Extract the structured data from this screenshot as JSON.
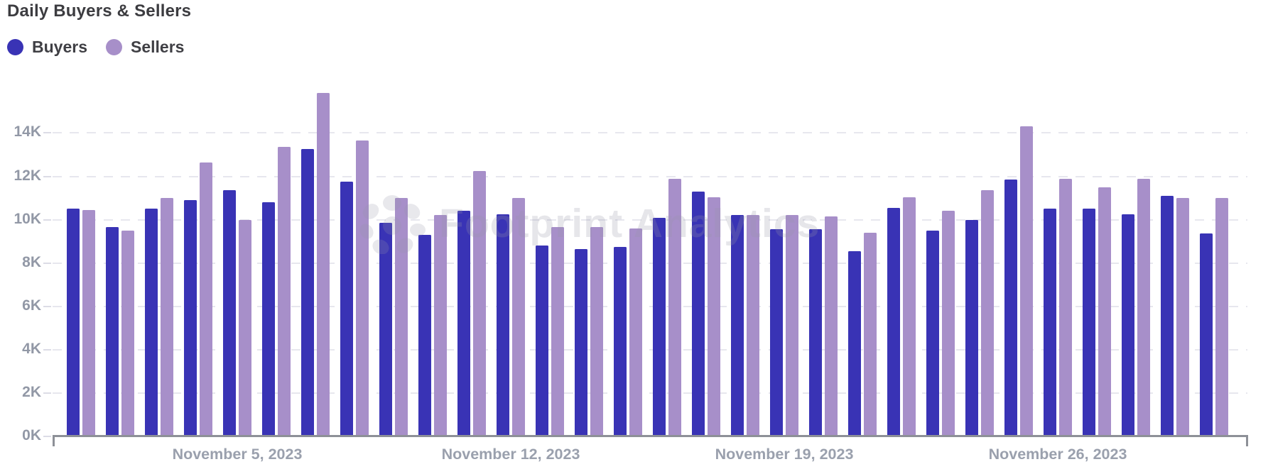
{
  "header": {
    "title": "Daily Buyers & Sellers"
  },
  "legend": {
    "items": [
      {
        "label": "Buyers",
        "color": "#3933B5"
      },
      {
        "label": "Sellers",
        "color": "#A78FC9"
      }
    ]
  },
  "watermark": {
    "text": "Footprint Analytics"
  },
  "axis": {
    "y_tick_labels": [
      "0K",
      "2K",
      "4K",
      "6K",
      "8K",
      "10K",
      "12K",
      "14K"
    ],
    "x_tick_labels": [
      {
        "index": 4,
        "label": "November 5, 2023"
      },
      {
        "index": 11,
        "label": "November 12, 2023"
      },
      {
        "index": 18,
        "label": "November 19, 2023"
      },
      {
        "index": 25,
        "label": "November 26, 2023"
      }
    ]
  },
  "chart_data": {
    "type": "bar",
    "title": "Daily Buyers & Sellers",
    "categories": [
      "2023-11-01",
      "2023-11-02",
      "2023-11-03",
      "2023-11-04",
      "2023-11-05",
      "2023-11-06",
      "2023-11-07",
      "2023-11-08",
      "2023-11-09",
      "2023-11-10",
      "2023-11-11",
      "2023-11-12",
      "2023-11-13",
      "2023-11-14",
      "2023-11-15",
      "2023-11-16",
      "2023-11-17",
      "2023-11-18",
      "2023-11-19",
      "2023-11-20",
      "2023-11-21",
      "2023-11-22",
      "2023-11-23",
      "2023-11-24",
      "2023-11-25",
      "2023-11-26",
      "2023-11-27",
      "2023-11-28",
      "2023-11-29",
      "2023-11-30"
    ],
    "series": [
      {
        "name": "Buyers",
        "color": "#3933B5",
        "values": [
          10500,
          9650,
          10500,
          10900,
          11350,
          10800,
          13250,
          11750,
          9850,
          9300,
          10400,
          10250,
          8800,
          8650,
          8750,
          10100,
          11300,
          10200,
          9550,
          9550,
          8550,
          10550,
          9500,
          10000,
          11850,
          10500,
          10500,
          10250,
          11100,
          9350
        ]
      },
      {
        "name": "Sellers",
        "color": "#A78FC9",
        "values": [
          10450,
          9500,
          11000,
          12650,
          10000,
          13350,
          15850,
          13650,
          11000,
          10200,
          12250,
          11000,
          9650,
          9650,
          9600,
          11900,
          11050,
          10200,
          10200,
          10150,
          9400,
          11050,
          10400,
          11350,
          14300,
          11900,
          11500,
          11900,
          11000,
          11000
        ]
      }
    ],
    "xlabel": "",
    "ylabel": "",
    "ylim": [
      0,
      16000
    ],
    "y_tick_step": 2000,
    "grid": "horizontal-dashed",
    "legend_position": "top-left"
  }
}
